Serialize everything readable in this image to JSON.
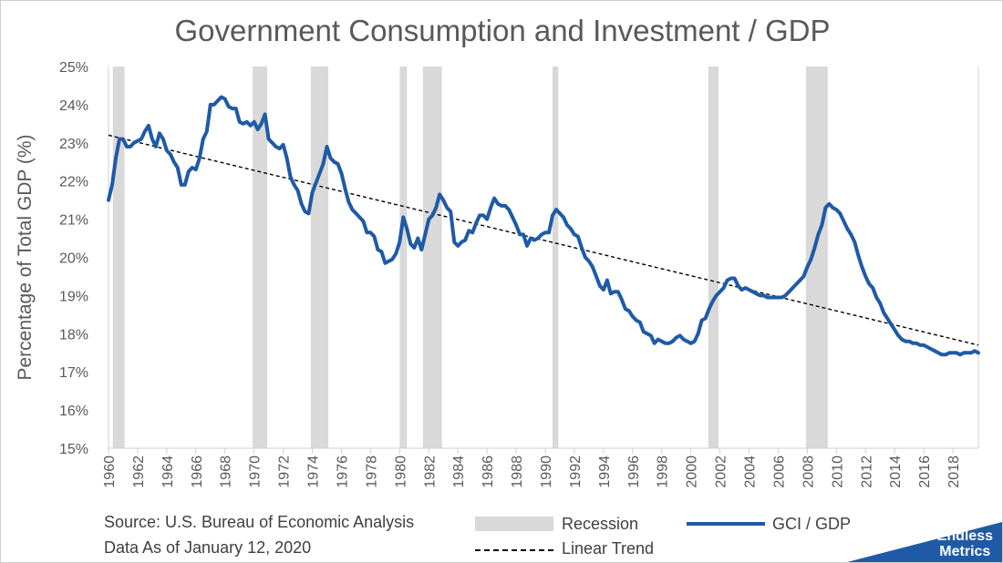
{
  "chart_data": {
    "type": "line",
    "title": "Government Consumption and Investment / GDP",
    "ylabel": "Percentage of Total GDP (%)",
    "xlabel": "",
    "xlim": [
      1960,
      2019.75
    ],
    "ylim": [
      15,
      25
    ],
    "x_ticks": [
      "1960",
      "1962",
      "1964",
      "1966",
      "1968",
      "1970",
      "1972",
      "1974",
      "1976",
      "1978",
      "1980",
      "1982",
      "1984",
      "1986",
      "1988",
      "1990",
      "1992",
      "1994",
      "1996",
      "1998",
      "2000",
      "2002",
      "2004",
      "2006",
      "2008",
      "2010",
      "2012",
      "2014",
      "2016",
      "2018"
    ],
    "y_ticks": [
      "15%",
      "16%",
      "17%",
      "18%",
      "19%",
      "20%",
      "21%",
      "22%",
      "23%",
      "24%",
      "25%"
    ],
    "recessions": [
      [
        1960.3,
        1961.1
      ],
      [
        1969.9,
        1970.9
      ],
      [
        1973.9,
        1975.1
      ],
      [
        1980.0,
        1980.5
      ],
      [
        1981.6,
        1982.9
      ],
      [
        1990.5,
        1990.9
      ],
      [
        2001.2,
        2001.9
      ],
      [
        2007.9,
        2009.4
      ]
    ],
    "series": [
      {
        "name": "GCI / GDP",
        "color": "#1f5aa6",
        "points": [
          [
            1960.0,
            21.5
          ],
          [
            1960.25,
            21.9
          ],
          [
            1960.5,
            22.6
          ],
          [
            1960.75,
            23.1
          ],
          [
            1961.0,
            23.1
          ],
          [
            1961.25,
            22.9
          ],
          [
            1961.5,
            22.9
          ],
          [
            1961.75,
            23.0
          ],
          [
            1962.0,
            23.05
          ],
          [
            1962.25,
            23.1
          ],
          [
            1962.5,
            23.3
          ],
          [
            1962.75,
            23.45
          ],
          [
            1963.0,
            23.1
          ],
          [
            1963.25,
            22.9
          ],
          [
            1963.5,
            23.25
          ],
          [
            1963.75,
            23.1
          ],
          [
            1964.0,
            22.8
          ],
          [
            1964.25,
            22.7
          ],
          [
            1964.5,
            22.5
          ],
          [
            1964.75,
            22.35
          ],
          [
            1965.0,
            21.9
          ],
          [
            1965.25,
            21.9
          ],
          [
            1965.5,
            22.25
          ],
          [
            1965.75,
            22.35
          ],
          [
            1966.0,
            22.3
          ],
          [
            1966.25,
            22.6
          ],
          [
            1966.5,
            23.1
          ],
          [
            1966.75,
            23.3
          ],
          [
            1967.0,
            24.0
          ],
          [
            1967.25,
            24.0
          ],
          [
            1967.5,
            24.1
          ],
          [
            1967.75,
            24.2
          ],
          [
            1968.0,
            24.15
          ],
          [
            1968.25,
            23.95
          ],
          [
            1968.5,
            23.9
          ],
          [
            1968.75,
            23.9
          ],
          [
            1969.0,
            23.55
          ],
          [
            1969.25,
            23.5
          ],
          [
            1969.5,
            23.55
          ],
          [
            1969.75,
            23.45
          ],
          [
            1970.0,
            23.55
          ],
          [
            1970.25,
            23.35
          ],
          [
            1970.5,
            23.5
          ],
          [
            1970.75,
            23.75
          ],
          [
            1971.0,
            23.1
          ],
          [
            1971.25,
            23.0
          ],
          [
            1971.5,
            22.9
          ],
          [
            1971.75,
            22.85
          ],
          [
            1972.0,
            22.95
          ],
          [
            1972.25,
            22.6
          ],
          [
            1972.5,
            22.1
          ],
          [
            1972.75,
            21.9
          ],
          [
            1973.0,
            21.75
          ],
          [
            1973.25,
            21.4
          ],
          [
            1973.5,
            21.2
          ],
          [
            1973.75,
            21.15
          ],
          [
            1974.0,
            21.7
          ],
          [
            1974.25,
            21.95
          ],
          [
            1974.5,
            22.2
          ],
          [
            1974.75,
            22.45
          ],
          [
            1975.0,
            22.9
          ],
          [
            1975.25,
            22.6
          ],
          [
            1975.5,
            22.5
          ],
          [
            1975.75,
            22.45
          ],
          [
            1976.0,
            22.2
          ],
          [
            1976.25,
            21.8
          ],
          [
            1976.5,
            21.45
          ],
          [
            1976.75,
            21.25
          ],
          [
            1977.0,
            21.15
          ],
          [
            1977.25,
            21.05
          ],
          [
            1977.5,
            20.95
          ],
          [
            1977.75,
            20.65
          ],
          [
            1978.0,
            20.65
          ],
          [
            1978.25,
            20.55
          ],
          [
            1978.5,
            20.2
          ],
          [
            1978.75,
            20.15
          ],
          [
            1979.0,
            19.85
          ],
          [
            1979.25,
            19.9
          ],
          [
            1979.5,
            19.95
          ],
          [
            1979.75,
            20.1
          ],
          [
            1980.0,
            20.4
          ],
          [
            1980.25,
            21.05
          ],
          [
            1980.5,
            20.75
          ],
          [
            1980.75,
            20.35
          ],
          [
            1981.0,
            20.25
          ],
          [
            1981.25,
            20.5
          ],
          [
            1981.5,
            20.2
          ],
          [
            1981.75,
            20.6
          ],
          [
            1982.0,
            21.0
          ],
          [
            1982.25,
            21.1
          ],
          [
            1982.5,
            21.3
          ],
          [
            1982.75,
            21.65
          ],
          [
            1983.0,
            21.5
          ],
          [
            1983.25,
            21.3
          ],
          [
            1983.5,
            21.2
          ],
          [
            1983.75,
            20.4
          ],
          [
            1984.0,
            20.3
          ],
          [
            1984.25,
            20.4
          ],
          [
            1984.5,
            20.45
          ],
          [
            1984.75,
            20.7
          ],
          [
            1985.0,
            20.65
          ],
          [
            1985.25,
            20.9
          ],
          [
            1985.5,
            21.1
          ],
          [
            1985.75,
            21.1
          ],
          [
            1986.0,
            21.0
          ],
          [
            1986.25,
            21.3
          ],
          [
            1986.5,
            21.55
          ],
          [
            1986.75,
            21.4
          ],
          [
            1987.0,
            21.35
          ],
          [
            1987.25,
            21.35
          ],
          [
            1987.5,
            21.25
          ],
          [
            1987.75,
            21.05
          ],
          [
            1988.0,
            20.85
          ],
          [
            1988.25,
            20.6
          ],
          [
            1988.5,
            20.6
          ],
          [
            1988.75,
            20.3
          ],
          [
            1989.0,
            20.5
          ],
          [
            1989.25,
            20.45
          ],
          [
            1989.5,
            20.5
          ],
          [
            1989.75,
            20.6
          ],
          [
            1990.0,
            20.65
          ],
          [
            1990.25,
            20.65
          ],
          [
            1990.5,
            21.1
          ],
          [
            1990.75,
            21.25
          ],
          [
            1991.0,
            21.15
          ],
          [
            1991.25,
            21.05
          ],
          [
            1991.5,
            20.85
          ],
          [
            1991.75,
            20.75
          ],
          [
            1992.0,
            20.6
          ],
          [
            1992.25,
            20.55
          ],
          [
            1992.5,
            20.25
          ],
          [
            1992.75,
            20.0
          ],
          [
            1993.0,
            19.9
          ],
          [
            1993.25,
            19.75
          ],
          [
            1993.5,
            19.5
          ],
          [
            1993.75,
            19.25
          ],
          [
            1994.0,
            19.15
          ],
          [
            1994.25,
            19.4
          ],
          [
            1994.5,
            19.05
          ],
          [
            1994.75,
            19.1
          ],
          [
            1995.0,
            19.1
          ],
          [
            1995.25,
            18.9
          ],
          [
            1995.5,
            18.65
          ],
          [
            1995.75,
            18.6
          ],
          [
            1996.0,
            18.45
          ],
          [
            1996.25,
            18.35
          ],
          [
            1996.5,
            18.3
          ],
          [
            1996.75,
            18.05
          ],
          [
            1997.0,
            18.0
          ],
          [
            1997.25,
            17.95
          ],
          [
            1997.5,
            17.75
          ],
          [
            1997.75,
            17.85
          ],
          [
            1998.0,
            17.8
          ],
          [
            1998.25,
            17.75
          ],
          [
            1998.5,
            17.75
          ],
          [
            1998.75,
            17.8
          ],
          [
            1999.0,
            17.9
          ],
          [
            1999.25,
            17.95
          ],
          [
            1999.5,
            17.85
          ],
          [
            1999.75,
            17.8
          ],
          [
            2000.0,
            17.75
          ],
          [
            2000.25,
            17.8
          ],
          [
            2000.5,
            18.0
          ],
          [
            2000.75,
            18.35
          ],
          [
            2001.0,
            18.4
          ],
          [
            2001.25,
            18.65
          ],
          [
            2001.5,
            18.85
          ],
          [
            2001.75,
            19.0
          ],
          [
            2002.0,
            19.1
          ],
          [
            2002.25,
            19.2
          ],
          [
            2002.5,
            19.4
          ],
          [
            2002.75,
            19.45
          ],
          [
            2003.0,
            19.45
          ],
          [
            2003.25,
            19.25
          ],
          [
            2003.5,
            19.15
          ],
          [
            2003.75,
            19.2
          ],
          [
            2004.0,
            19.15
          ],
          [
            2004.25,
            19.1
          ],
          [
            2004.5,
            19.05
          ],
          [
            2004.75,
            19.0
          ],
          [
            2005.0,
            19.0
          ],
          [
            2005.25,
            18.95
          ],
          [
            2005.5,
            18.95
          ],
          [
            2005.75,
            18.95
          ],
          [
            2006.0,
            18.95
          ],
          [
            2006.25,
            18.95
          ],
          [
            2006.5,
            19.0
          ],
          [
            2006.75,
            19.1
          ],
          [
            2007.0,
            19.2
          ],
          [
            2007.25,
            19.3
          ],
          [
            2007.5,
            19.4
          ],
          [
            2007.75,
            19.5
          ],
          [
            2008.0,
            19.75
          ],
          [
            2008.25,
            19.95
          ],
          [
            2008.5,
            20.25
          ],
          [
            2008.75,
            20.6
          ],
          [
            2009.0,
            20.85
          ],
          [
            2009.25,
            21.3
          ],
          [
            2009.5,
            21.4
          ],
          [
            2009.75,
            21.3
          ],
          [
            2010.0,
            21.25
          ],
          [
            2010.25,
            21.15
          ],
          [
            2010.5,
            20.95
          ],
          [
            2010.75,
            20.75
          ],
          [
            2011.0,
            20.6
          ],
          [
            2011.25,
            20.4
          ],
          [
            2011.5,
            20.05
          ],
          [
            2011.75,
            19.75
          ],
          [
            2012.0,
            19.5
          ],
          [
            2012.25,
            19.3
          ],
          [
            2012.5,
            19.2
          ],
          [
            2012.75,
            18.95
          ],
          [
            2013.0,
            18.8
          ],
          [
            2013.25,
            18.55
          ],
          [
            2013.5,
            18.4
          ],
          [
            2013.75,
            18.25
          ],
          [
            2014.0,
            18.1
          ],
          [
            2014.25,
            17.95
          ],
          [
            2014.5,
            17.85
          ],
          [
            2014.75,
            17.8
          ],
          [
            2015.0,
            17.8
          ],
          [
            2015.25,
            17.75
          ],
          [
            2015.5,
            17.75
          ],
          [
            2015.75,
            17.7
          ],
          [
            2016.0,
            17.7
          ],
          [
            2016.25,
            17.65
          ],
          [
            2016.5,
            17.6
          ],
          [
            2016.75,
            17.55
          ],
          [
            2017.0,
            17.5
          ],
          [
            2017.25,
            17.45
          ],
          [
            2017.5,
            17.45
          ],
          [
            2017.75,
            17.5
          ],
          [
            2018.0,
            17.5
          ],
          [
            2018.25,
            17.5
          ],
          [
            2018.5,
            17.45
          ],
          [
            2018.75,
            17.5
          ],
          [
            2019.0,
            17.5
          ],
          [
            2019.25,
            17.5
          ],
          [
            2019.5,
            17.55
          ],
          [
            2019.75,
            17.5
          ]
        ]
      },
      {
        "name": "Linear Trend",
        "color": "#000000",
        "style": "dashed",
        "points": [
          [
            1960.0,
            23.2
          ],
          [
            2019.75,
            17.7
          ]
        ]
      }
    ],
    "legend": [
      "Recession",
      "GCI / GDP",
      "Linear Trend"
    ],
    "legend_position": "bottom"
  },
  "footer": {
    "source": "Source: U.S. Bureau of Economic Analysis",
    "date": "Data As of January 12, 2020"
  },
  "logo": {
    "line1": "Endless",
    "line2": "Metrics",
    "color": "#1f5aa6"
  }
}
